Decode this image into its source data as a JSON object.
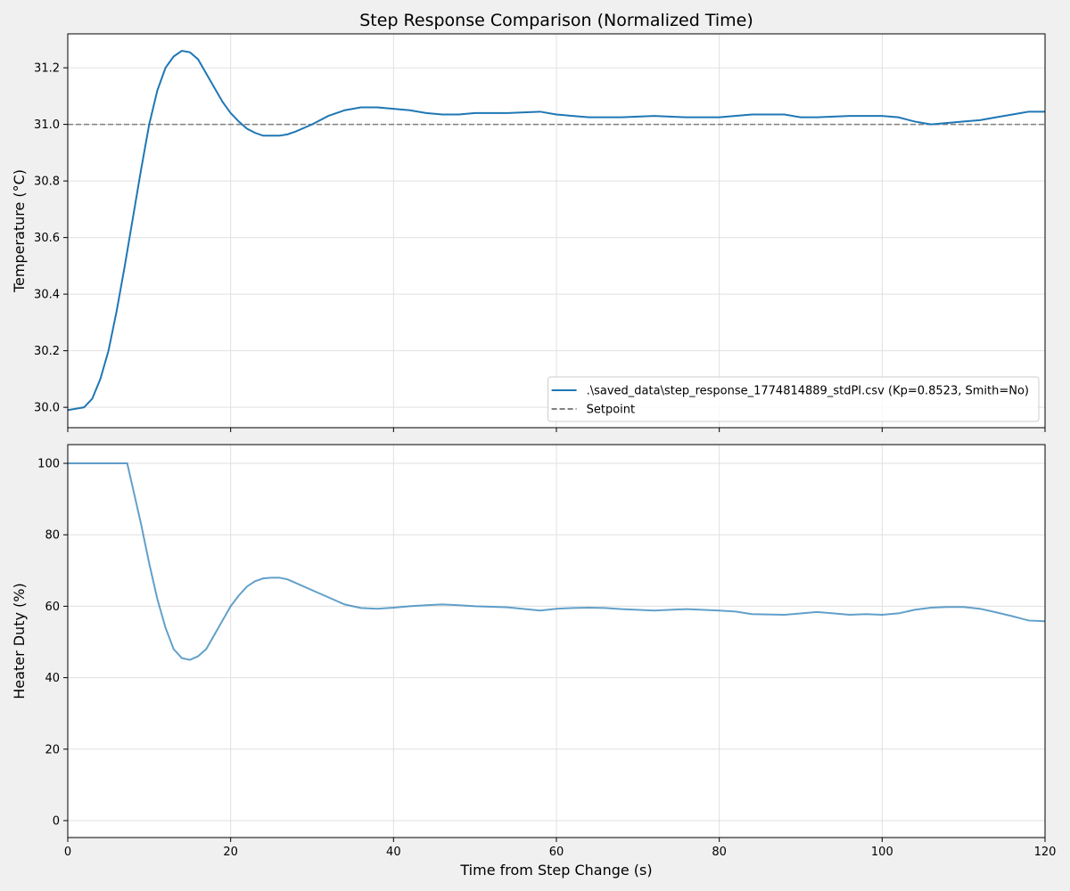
{
  "chart_data": [
    {
      "type": "line",
      "title": "Step Response Comparison (Normalized Time)",
      "y_label": "Temperature (°C)",
      "xlim": [
        0,
        120
      ],
      "xticks": [
        0,
        20,
        40,
        60,
        80,
        100,
        120
      ],
      "xtick_labels": false,
      "ylim": [
        29.928,
        31.32
      ],
      "yticks": [
        {
          "value": 30.0,
          "label": "30.0"
        },
        30.2,
        30.4,
        30.6,
        30.8,
        {
          "value": 31.0,
          "label": "31.0"
        },
        31.2
      ],
      "grid": true,
      "legend": "lower right",
      "x": [
        0,
        2,
        3,
        4,
        5,
        6,
        7,
        8,
        9,
        10,
        11,
        12,
        13,
        14,
        15,
        16,
        17,
        18,
        19,
        20,
        21,
        22,
        23,
        24,
        25,
        26,
        27,
        28,
        30,
        32,
        34,
        36,
        38,
        40,
        42,
        44,
        46,
        48,
        50,
        54,
        58,
        60,
        62,
        64,
        68,
        72,
        76,
        80,
        84,
        88,
        90,
        92,
        96,
        100,
        102,
        104,
        106,
        108,
        110,
        112,
        114,
        116,
        118,
        120
      ],
      "series": [
        {
          "name": ".\\saved_data\\step_response_1774814889_stdPI.csv (Kp=0.8523, Smith=No)",
          "color": "#1f77b4",
          "alpha": 1,
          "values": [
            29.99,
            30.0,
            30.03,
            30.1,
            30.2,
            30.34,
            30.5,
            30.67,
            30.84,
            31.0,
            31.12,
            31.2,
            31.24,
            31.26,
            31.255,
            31.23,
            31.18,
            31.13,
            31.08,
            31.04,
            31.01,
            30.985,
            30.97,
            30.96,
            30.96,
            30.96,
            30.965,
            30.975,
            31.0,
            31.03,
            31.05,
            31.06,
            31.06,
            31.055,
            31.05,
            31.04,
            31.035,
            31.035,
            31.04,
            31.04,
            31.045,
            31.035,
            31.03,
            31.025,
            31.025,
            31.03,
            31.025,
            31.025,
            31.035,
            31.035,
            31.025,
            31.025,
            31.03,
            31.03,
            31.025,
            31.01,
            31.0,
            31.005,
            31.01,
            31.015,
            31.025,
            31.035,
            31.045,
            31.045
          ]
        }
      ],
      "reference_line": {
        "name": "Setpoint",
        "value": 31.0,
        "color": "#808080",
        "style": "dashed"
      }
    },
    {
      "type": "line",
      "x_label": "Time from Step Change (s)",
      "y_label": "Heater Duty (%)",
      "xlim": [
        0,
        120
      ],
      "xticks": [
        0,
        20,
        40,
        60,
        80,
        100,
        120
      ],
      "xtick_labels": true,
      "ylim": [
        -4.74,
        105.24
      ],
      "yticks": [
        0,
        20,
        40,
        60,
        80,
        100
      ],
      "grid": true,
      "x": [
        0,
        7.3,
        8,
        9,
        10,
        11,
        12,
        13,
        14,
        15,
        16,
        17,
        18,
        19,
        20,
        21,
        22,
        23,
        24,
        25,
        26,
        27,
        28,
        30,
        32,
        34,
        36,
        38,
        40,
        42,
        44,
        46,
        48,
        50,
        54,
        58,
        60,
        62,
        64,
        66,
        68,
        72,
        76,
        80,
        82,
        84,
        88,
        92,
        94,
        96,
        98,
        100,
        102,
        104,
        106,
        108,
        110,
        112,
        114,
        116,
        118,
        120
      ],
      "series": [
        {
          "color": "#1f77b4",
          "alpha": 0.7,
          "values": [
            100,
            100,
            93,
            83,
            72,
            62,
            54,
            48,
            45.5,
            45,
            46,
            48,
            52,
            56,
            60,
            63,
            65.5,
            67,
            67.8,
            68,
            68,
            67.5,
            66.5,
            64.5,
            62.5,
            60.5,
            59.5,
            59.3,
            59.6,
            60,
            60.3,
            60.5,
            60.3,
            60,
            59.7,
            58.8,
            59.3,
            59.5,
            59.6,
            59.5,
            59.2,
            58.8,
            59.2,
            58.8,
            58.5,
            57.8,
            57.6,
            58.4,
            58,
            57.6,
            57.8,
            57.6,
            58,
            59,
            59.6,
            59.8,
            59.8,
            59.3,
            58.3,
            57.2,
            56,
            55.8
          ]
        }
      ]
    }
  ]
}
